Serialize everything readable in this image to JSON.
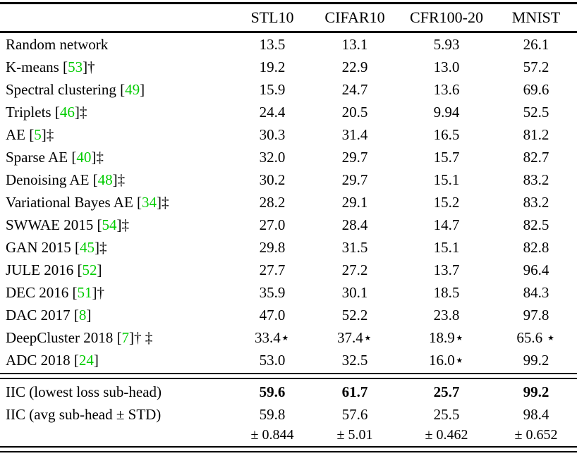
{
  "colors": {
    "citation": "#00cc00",
    "text": "#000000",
    "rule": "#000000"
  },
  "table": {
    "columns": [
      "STL10",
      "CIFAR10",
      "CFR100-20",
      "MNIST"
    ],
    "rows": [
      {
        "label_parts": [
          {
            "t": "Random network"
          }
        ],
        "values": [
          "13.5",
          "13.1",
          "5.93",
          "26.1"
        ]
      },
      {
        "label_parts": [
          {
            "t": "K-means ["
          },
          {
            "t": "53",
            "c": "cite"
          },
          {
            "t": "]†"
          }
        ],
        "values": [
          "19.2",
          "22.9",
          "13.0",
          "57.2"
        ]
      },
      {
        "label_parts": [
          {
            "t": "Spectral clustering ["
          },
          {
            "t": "49",
            "c": "cite"
          },
          {
            "t": "]"
          }
        ],
        "values": [
          "15.9",
          "24.7",
          "13.6",
          "69.6"
        ]
      },
      {
        "label_parts": [
          {
            "t": "Triplets ["
          },
          {
            "t": "46",
            "c": "cite"
          },
          {
            "t": "]‡"
          }
        ],
        "values": [
          "24.4",
          "20.5",
          "9.94",
          "52.5"
        ]
      },
      {
        "label_parts": [
          {
            "t": "AE ["
          },
          {
            "t": "5",
            "c": "cite"
          },
          {
            "t": "]‡"
          }
        ],
        "values": [
          "30.3",
          "31.4",
          "16.5",
          "81.2"
        ]
      },
      {
        "label_parts": [
          {
            "t": "Sparse AE ["
          },
          {
            "t": "40",
            "c": "cite"
          },
          {
            "t": "]‡"
          }
        ],
        "values": [
          "32.0",
          "29.7",
          "15.7",
          "82.7"
        ]
      },
      {
        "label_parts": [
          {
            "t": "Denoising AE ["
          },
          {
            "t": "48",
            "c": "cite"
          },
          {
            "t": "]‡"
          }
        ],
        "values": [
          "30.2",
          "29.7",
          "15.1",
          "83.2"
        ]
      },
      {
        "label_parts": [
          {
            "t": "Variational Bayes AE ["
          },
          {
            "t": "34",
            "c": "cite"
          },
          {
            "t": "]‡"
          }
        ],
        "values": [
          "28.2",
          "29.1",
          "15.2",
          "83.2"
        ]
      },
      {
        "label_parts": [
          {
            "t": "SWWAE 2015 ["
          },
          {
            "t": "54",
            "c": "cite"
          },
          {
            "t": "]‡"
          }
        ],
        "values": [
          "27.0",
          "28.4",
          "14.7",
          "82.5"
        ]
      },
      {
        "label_parts": [
          {
            "t": "GAN 2015 ["
          },
          {
            "t": "45",
            "c": "cite"
          },
          {
            "t": "]‡"
          }
        ],
        "values": [
          "29.8",
          "31.5",
          "15.1",
          "82.8"
        ]
      },
      {
        "label_parts": [
          {
            "t": "JULE 2016 ["
          },
          {
            "t": "52",
            "c": "cite"
          },
          {
            "t": "]"
          }
        ],
        "values": [
          "27.7",
          "27.2",
          "13.7",
          "96.4"
        ]
      },
      {
        "label_parts": [
          {
            "t": "DEC 2016 ["
          },
          {
            "t": "51",
            "c": "cite"
          },
          {
            "t": "]†"
          }
        ],
        "values": [
          "35.9",
          "30.1",
          "18.5",
          "84.3"
        ]
      },
      {
        "label_parts": [
          {
            "t": "DAC 2017 ["
          },
          {
            "t": "8",
            "c": "cite"
          },
          {
            "t": "]"
          }
        ],
        "values": [
          "47.0",
          "52.2",
          "23.8",
          "97.8"
        ]
      },
      {
        "label_parts": [
          {
            "t": "DeepCluster 2018 ["
          },
          {
            "t": "7",
            "c": "cite"
          },
          {
            "t": "]† ‡"
          }
        ],
        "values": [
          "33.4⋆",
          "37.4⋆",
          "18.9⋆",
          "65.6 ⋆"
        ]
      },
      {
        "label_parts": [
          {
            "t": "ADC 2018 ["
          },
          {
            "t": "24",
            "c": "cite"
          },
          {
            "t": "]"
          }
        ],
        "values": [
          "53.0",
          "32.5",
          "16.0⋆",
          "99.2"
        ]
      }
    ],
    "iic_rows": [
      {
        "label_parts": [
          {
            "t": "IIC (lowest loss sub-head)"
          }
        ],
        "values": [
          "59.6",
          "61.7",
          "25.7",
          "99.2"
        ],
        "bold": true
      },
      {
        "label_parts": [
          {
            "t": "IIC (avg sub-head ± STD)"
          }
        ],
        "values": [
          "59.8",
          "57.6",
          "25.5",
          "98.4"
        ],
        "std": [
          "± 0.844",
          "± 5.01",
          "± 0.462",
          "± 0.652"
        ],
        "bold": false
      }
    ]
  }
}
